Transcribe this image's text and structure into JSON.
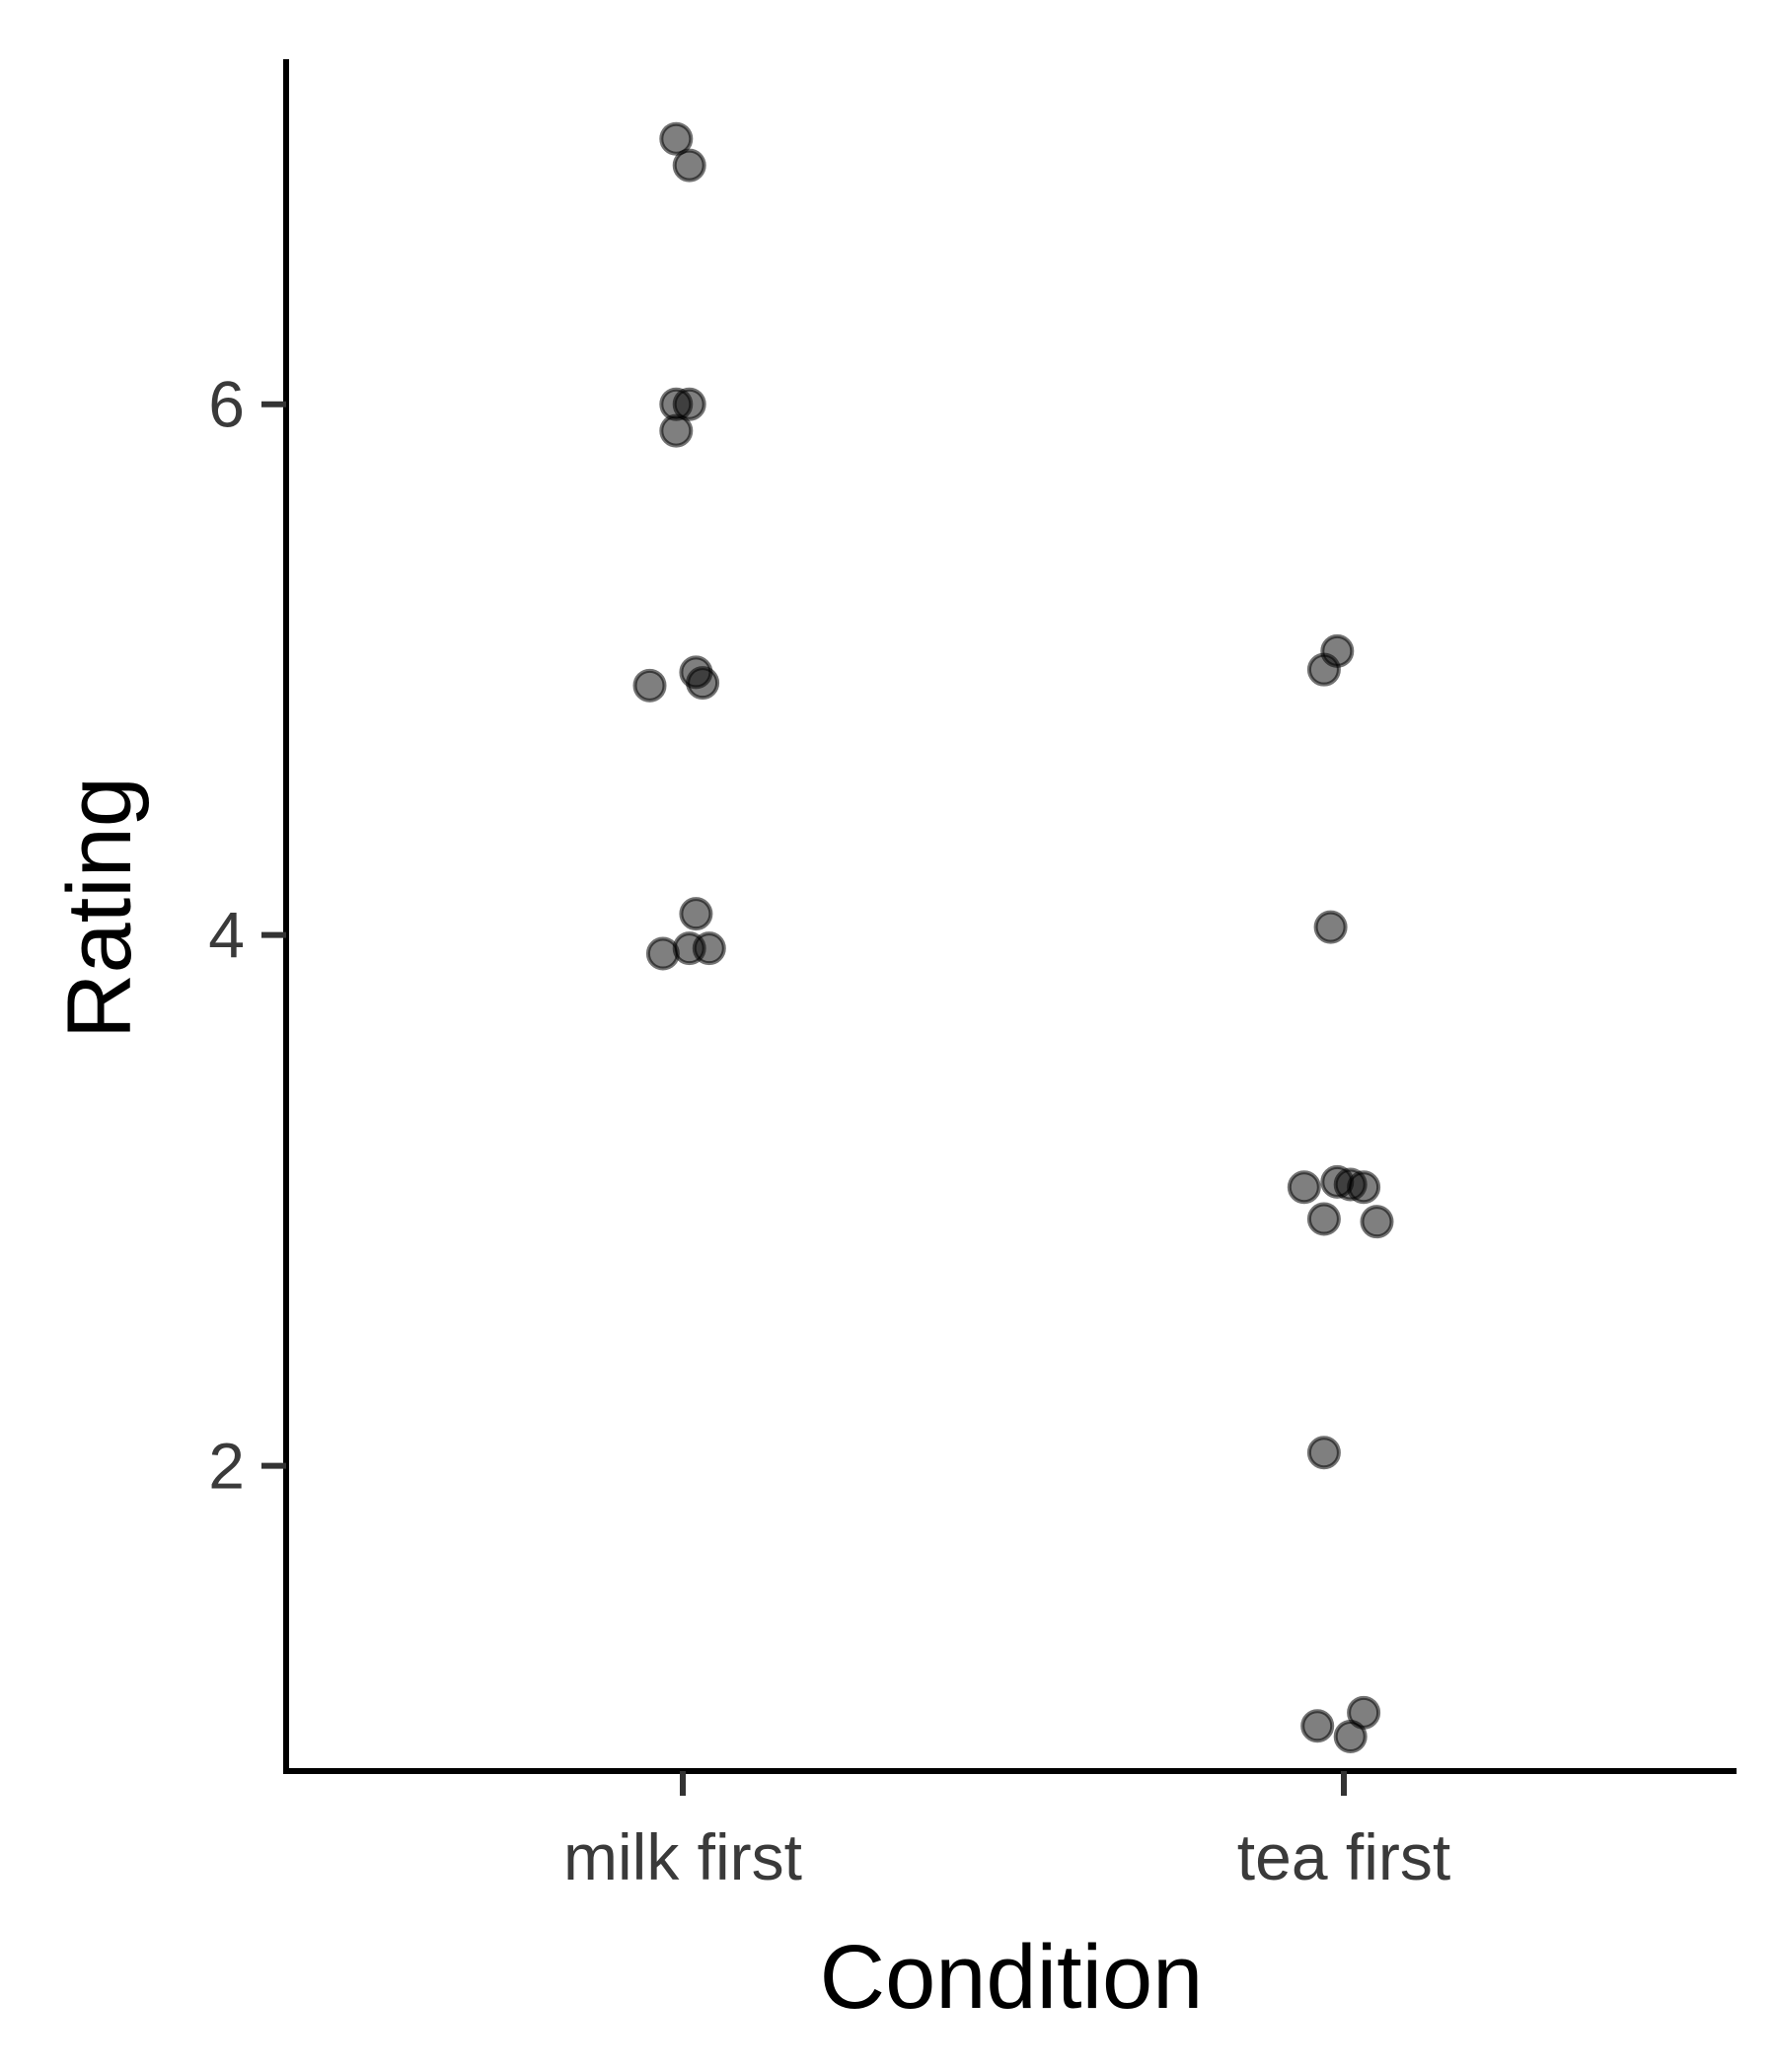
{
  "chart_data": {
    "type": "scatter",
    "title": "",
    "xlabel": "Condition",
    "ylabel": "Rating",
    "categories": [
      "milk first",
      "tea first"
    ],
    "ylim": [
      0.85,
      7.3
    ],
    "yticks": [
      2,
      4,
      6
    ],
    "grid": false,
    "legend": "none",
    "point_color": "#000000",
    "point_alpha": 0.5,
    "points": [
      {
        "x": "milk first",
        "jitter": -0.01,
        "y": 7.0
      },
      {
        "x": "milk first",
        "jitter": 0.01,
        "y": 6.9
      },
      {
        "x": "milk first",
        "jitter": -0.01,
        "y": 6.0
      },
      {
        "x": "milk first",
        "jitter": 0.01,
        "y": 6.0
      },
      {
        "x": "milk first",
        "jitter": -0.01,
        "y": 5.9
      },
      {
        "x": "milk first",
        "jitter": -0.05,
        "y": 4.94
      },
      {
        "x": "milk first",
        "jitter": 0.02,
        "y": 4.99
      },
      {
        "x": "milk first",
        "jitter": 0.03,
        "y": 4.95
      },
      {
        "x": "milk first",
        "jitter": 0.02,
        "y": 4.08
      },
      {
        "x": "milk first",
        "jitter": -0.03,
        "y": 3.93
      },
      {
        "x": "milk first",
        "jitter": 0.01,
        "y": 3.95
      },
      {
        "x": "milk first",
        "jitter": 0.04,
        "y": 3.95
      },
      {
        "x": "tea first",
        "jitter": -0.01,
        "y": 5.07
      },
      {
        "x": "tea first",
        "jitter": -0.03,
        "y": 5.0
      },
      {
        "x": "tea first",
        "jitter": -0.02,
        "y": 4.03
      },
      {
        "x": "tea first",
        "jitter": -0.06,
        "y": 3.05
      },
      {
        "x": "tea first",
        "jitter": -0.01,
        "y": 3.07
      },
      {
        "x": "tea first",
        "jitter": 0.01,
        "y": 3.06
      },
      {
        "x": "tea first",
        "jitter": 0.03,
        "y": 3.05
      },
      {
        "x": "tea first",
        "jitter": -0.03,
        "y": 2.93
      },
      {
        "x": "tea first",
        "jitter": 0.05,
        "y": 2.92
      },
      {
        "x": "tea first",
        "jitter": -0.03,
        "y": 2.05
      },
      {
        "x": "tea first",
        "jitter": 0.03,
        "y": 1.07
      },
      {
        "x": "tea first",
        "jitter": -0.04,
        "y": 1.02
      },
      {
        "x": "tea first",
        "jitter": 0.01,
        "y": 0.98
      }
    ]
  }
}
